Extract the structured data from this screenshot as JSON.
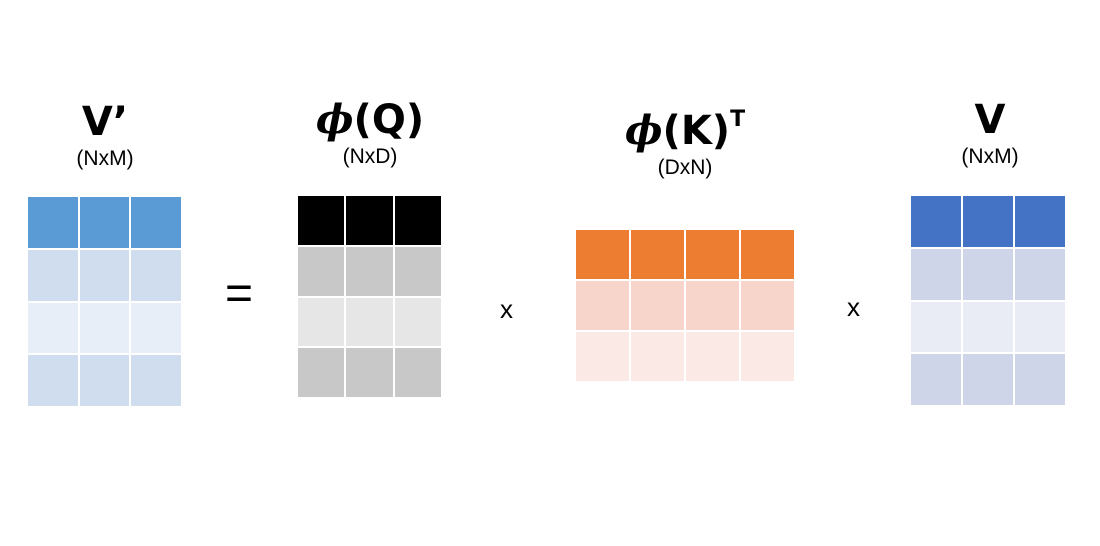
{
  "matrices": [
    {
      "id": "v-prime",
      "title_main": "V’",
      "title_phi": "",
      "title_paren": "",
      "title_sup": "",
      "dims": "(NxM)",
      "rows": 4,
      "cols": 3,
      "row_colors": [
        "#5B9BD5",
        "#D0DDEE",
        "#E8EEF7",
        "#D0DDEE"
      ]
    },
    {
      "id": "phi-q",
      "title_main": "",
      "title_phi": "ϕ",
      "title_paren": "(Q)",
      "title_sup": "",
      "dims": "(NxD)",
      "rows": 4,
      "cols": 3,
      "row_colors": [
        "#000000",
        "#C8C8C8",
        "#E6E6E6",
        "#C8C8C8"
      ]
    },
    {
      "id": "phi-k-t",
      "title_main": "",
      "title_phi": "ϕ",
      "title_paren": "(K)",
      "title_sup": "T",
      "dims": "(DxN)",
      "rows": 3,
      "cols": 4,
      "row_colors": [
        "#ED7D31",
        "#F8D5CB",
        "#FBE9E5"
      ]
    },
    {
      "id": "v",
      "title_main": "V",
      "title_phi": "",
      "title_paren": "",
      "title_sup": "",
      "dims": "(NxM)",
      "rows": 4,
      "cols": 3,
      "row_colors": [
        "#4472C4",
        "#CFD5E9",
        "#E9ECF5",
        "#CFD5E9"
      ]
    }
  ],
  "operators": {
    "equals": "=",
    "times_1": "x",
    "times_2": "x"
  }
}
